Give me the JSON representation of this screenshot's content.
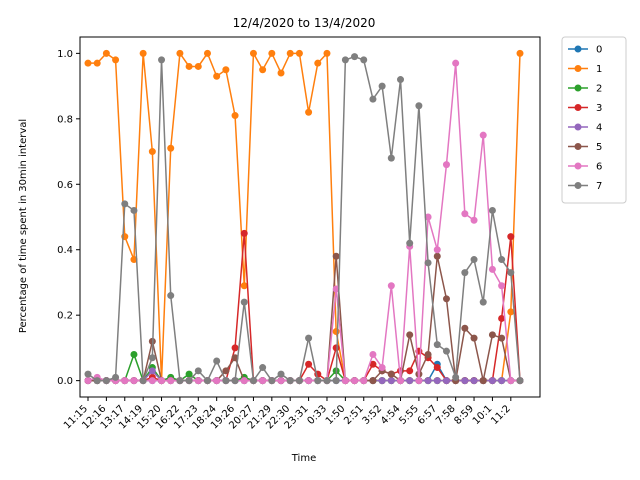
{
  "chart_data": {
    "type": "line",
    "title": "12/4/2020 to 13/4/2020",
    "xlabel": "Time",
    "ylabel": "Percentage of time spent in 30min interval",
    "ylim": [
      -0.05,
      1.05
    ],
    "yticks": [
      "0.0",
      "0.2",
      "0.4",
      "0.6",
      "0.8",
      "1.0"
    ],
    "xticks": [
      {
        "label": "11:15",
        "index": 0
      },
      {
        "label": "12:16",
        "index": 2
      },
      {
        "label": "13:17",
        "index": 4
      },
      {
        "label": "14:19",
        "index": 6
      },
      {
        "label": "15:20",
        "index": 8
      },
      {
        "label": "16:22",
        "index": 10
      },
      {
        "label": "17:23",
        "index": 12
      },
      {
        "label": "18:24",
        "index": 14
      },
      {
        "label": "19:26",
        "index": 16
      },
      {
        "label": "20:27",
        "index": 18
      },
      {
        "label": "21:29",
        "index": 20
      },
      {
        "label": "22:30",
        "index": 22
      },
      {
        "label": "23:31",
        "index": 24
      },
      {
        "label": "0:33",
        "index": 26
      },
      {
        "label": "1:50",
        "index": 28
      },
      {
        "label": "2:51",
        "index": 30
      },
      {
        "label": "3:52",
        "index": 32
      },
      {
        "label": "4:54",
        "index": 34
      },
      {
        "label": "5:55",
        "index": 36
      },
      {
        "label": "6:57",
        "index": 38
      },
      {
        "label": "7:58",
        "index": 40
      },
      {
        "label": "8:59",
        "index": 42
      },
      {
        "label": "10:1",
        "index": 44
      },
      {
        "label": "11:2",
        "index": 46
      }
    ],
    "n_points": 48,
    "legend_position": "outside-right",
    "grid": false,
    "series": [
      {
        "name": "0",
        "color": "#1f77b4",
        "values": [
          0,
          0,
          0,
          0,
          0,
          0,
          0,
          0,
          0,
          0,
          0,
          0,
          0,
          0,
          0,
          0,
          0,
          0,
          0,
          0,
          0,
          0,
          0,
          0,
          0,
          0,
          0,
          0,
          0,
          0,
          0,
          0,
          0,
          0,
          0,
          0,
          0,
          0,
          0.05,
          0,
          0,
          0,
          0,
          0,
          0,
          0,
          0,
          0
        ]
      },
      {
        "name": "1",
        "color": "#ff7f0e",
        "values": [
          0.97,
          0.97,
          1.0,
          0.98,
          0.44,
          0.37,
          1.0,
          0.7,
          0,
          0.71,
          1.0,
          0.96,
          0.96,
          1.0,
          0.93,
          0.95,
          0.81,
          0.29,
          1.0,
          0.95,
          1.0,
          0.94,
          1.0,
          1.0,
          0.82,
          0.97,
          1.0,
          0.15,
          0,
          0,
          0,
          0,
          0,
          0,
          0,
          0,
          0,
          0,
          0,
          0,
          0,
          0,
          0,
          0,
          0,
          0,
          0.21,
          1.0
        ]
      },
      {
        "name": "2",
        "color": "#2ca02c",
        "values": [
          0,
          0,
          0,
          0,
          0,
          0.08,
          0,
          0.04,
          0,
          0.01,
          0,
          0.02,
          0,
          0,
          0,
          0,
          0,
          0.01,
          0,
          0,
          0,
          0,
          0,
          0,
          0,
          0,
          0,
          0.03,
          0,
          0,
          0,
          0,
          0,
          0,
          0,
          0,
          0,
          0,
          0,
          0,
          0,
          0,
          0,
          0,
          0,
          0,
          0,
          0
        ]
      },
      {
        "name": "3",
        "color": "#d62728",
        "values": [
          0,
          0,
          0,
          0,
          0,
          0,
          0,
          0.01,
          0,
          0,
          0,
          0,
          0,
          0,
          0,
          0,
          0.1,
          0.45,
          0,
          0,
          0,
          0,
          0,
          0,
          0.05,
          0.02,
          0,
          0.1,
          0,
          0,
          0,
          0.05,
          0.03,
          0.02,
          0.03,
          0.03,
          0.09,
          0.07,
          0.04,
          0,
          0,
          0,
          0,
          0,
          0,
          0.19,
          0.44,
          0
        ]
      },
      {
        "name": "4",
        "color": "#9467bd",
        "values": [
          0,
          0,
          0,
          0,
          0,
          0,
          0,
          0.03,
          0,
          0,
          0,
          0,
          0,
          0,
          0,
          0,
          0,
          0,
          0,
          0,
          0,
          0,
          0,
          0,
          0,
          0,
          0,
          0,
          0,
          0,
          0,
          0,
          0,
          0,
          0,
          0,
          0,
          0,
          0,
          0,
          0,
          0,
          0,
          0,
          0,
          0,
          0,
          0
        ]
      },
      {
        "name": "5",
        "color": "#8c564b",
        "values": [
          0,
          0,
          0,
          0,
          0,
          0,
          0,
          0.12,
          0,
          0,
          0,
          0,
          0,
          0,
          0,
          0.03,
          0.07,
          0,
          0,
          0,
          0,
          0,
          0,
          0,
          0,
          0,
          0,
          0.38,
          0,
          0,
          0,
          0,
          0.03,
          0.02,
          0,
          0.14,
          0.02,
          0.08,
          0.38,
          0.25,
          0,
          0.16,
          0.13,
          0,
          0.14,
          0.13,
          0,
          0
        ]
      },
      {
        "name": "6",
        "color": "#e377c2",
        "values": [
          0,
          0.01,
          0,
          0,
          0,
          0,
          0,
          0,
          0,
          0,
          0,
          0,
          0,
          0,
          0,
          0,
          0,
          0,
          0,
          0,
          0,
          0,
          0,
          0,
          0,
          0,
          0,
          0.28,
          0,
          0,
          0,
          0.08,
          0.04,
          0.29,
          0,
          0.41,
          0,
          0.5,
          0.4,
          0.66,
          0.97,
          0.51,
          0.49,
          0.75,
          0.34,
          0.29,
          0,
          0
        ]
      },
      {
        "name": "7",
        "color": "#7f7f7f",
        "values": [
          0.02,
          0,
          0,
          0.01,
          0.54,
          0.52,
          0,
          0.07,
          0.98,
          0.26,
          0,
          0,
          0.03,
          0,
          0.06,
          0,
          0,
          0.24,
          0,
          0.04,
          0,
          0.02,
          0,
          0,
          0.13,
          0,
          0,
          0,
          0.98,
          0.99,
          0.98,
          0.86,
          0.9,
          0.68,
          0.92,
          0.42,
          0.84,
          0.36,
          0.11,
          0.09,
          0.01,
          0.33,
          0.37,
          0.24,
          0.52,
          0.37,
          0.33,
          0
        ]
      }
    ]
  }
}
